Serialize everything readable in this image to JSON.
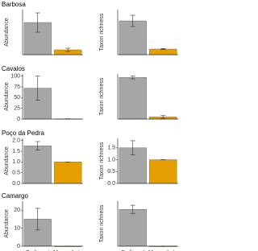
{
  "chart_data": [
    {
      "type": "bar",
      "title": "Barbosa",
      "ylabel": "Abundance",
      "categories": [
        null,
        null
      ],
      "values": [
        20,
        3
      ],
      "errors": [
        6,
        1
      ],
      "colors": [
        "#a6a6a6",
        "#e69f00"
      ],
      "ylim": [
        0,
        28
      ]
    },
    {
      "type": "bar",
      "ylabel": "Taxon richness",
      "categories": [
        null,
        null
      ],
      "values": [
        6,
        1
      ],
      "errors": [
        1,
        0.1
      ],
      "colors": [
        "#a6a6a6",
        "#e69f00"
      ],
      "ylim": [
        0,
        8
      ]
    },
    {
      "type": "bar",
      "title": "Cavalos",
      "ylabel": "Abundance",
      "categories": [
        null,
        null
      ],
      "values": [
        72,
        0.5
      ],
      "errors": [
        28,
        0.3
      ],
      "colors": [
        "#a6a6a6",
        "#e69f00"
      ],
      "ylim": [
        0,
        105
      ],
      "yticks": [
        0,
        25,
        50,
        75,
        100
      ]
    },
    {
      "type": "bar",
      "ylabel": "Taxon richness",
      "categories": [
        null,
        null
      ],
      "values": [
        6,
        0.3
      ],
      "errors": [
        0.2,
        0.2
      ],
      "colors": [
        "#a6a6a6",
        "#e69f00"
      ],
      "ylim": [
        0,
        6.5
      ]
    },
    {
      "type": "bar",
      "title": "Poço da Pedra",
      "ylabel": "Abundance",
      "categories": [
        null,
        null
      ],
      "values": [
        1.75,
        1.0
      ],
      "errors": [
        0.2,
        0
      ],
      "colors": [
        "#a6a6a6",
        "#e69f00"
      ],
      "ylim": [
        0,
        2.1
      ],
      "yticks": [
        {
          "value": 0,
          "label": "0.0"
        },
        0.5,
        {
          "value": 1,
          "label": "1.0"
        },
        1.5,
        {
          "value": 2,
          "label": "2.0"
        }
      ]
    },
    {
      "type": "bar",
      "ylabel": "Taxon richness",
      "categories": [
        null,
        null
      ],
      "values": [
        1.5,
        1.0
      ],
      "errors": [
        0.3,
        0
      ],
      "colors": [
        "#a6a6a6",
        "#e69f00"
      ],
      "ylim": [
        0,
        1.9
      ],
      "yticks": [
        {
          "value": 0,
          "label": "0.0"
        },
        0.5,
        {
          "value": 1,
          "label": "1.0"
        },
        1.5
      ]
    },
    {
      "type": "bar",
      "title": "Camargo",
      "ylabel": "Abundance",
      "categories": [
        "Sediment",
        "Macrophyte"
      ],
      "values": [
        15,
        0
      ],
      "errors": [
        6,
        0
      ],
      "colors": [
        "#a6a6a6",
        "#e69f00"
      ],
      "ylim": [
        0,
        25
      ],
      "yticks": [
        0,
        10,
        20
      ]
    },
    {
      "type": "bar",
      "ylabel": "Taxon richness",
      "categories": [
        "Sediment",
        "Macrophyte"
      ],
      "values": [
        4.5,
        0
      ],
      "errors": [
        0.5,
        0
      ],
      "colors": [
        "#a6a6a6",
        "#e69f00"
      ],
      "ylim": [
        0,
        5.5
      ]
    }
  ]
}
